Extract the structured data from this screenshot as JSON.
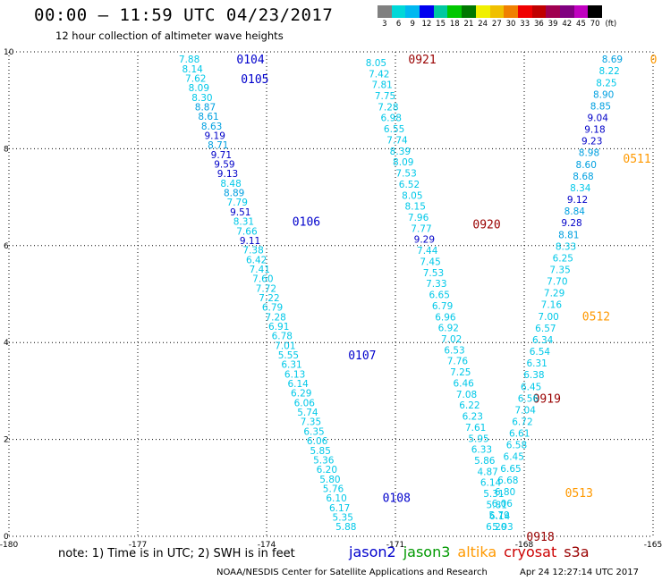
{
  "header": {
    "title": "00:00 – 11:59 UTC 04/23/2017",
    "subtitle": "12 hour collection of altimeter wave heights"
  },
  "color_scale": {
    "labels": [
      "3",
      "6",
      "9",
      "12",
      "15",
      "18",
      "21",
      "24",
      "27",
      "30",
      "33",
      "36",
      "39",
      "42",
      "45",
      "70"
    ],
    "unit": "(ft)",
    "colors": [
      "#808080",
      "#00d8d8",
      "#00b8f0",
      "#0000f0",
      "#00c8a0",
      "#00c800",
      "#007800",
      "#f0f000",
      "#f0c000",
      "#f08000",
      "#f00000",
      "#c00000",
      "#a00050",
      "#800080",
      "#c000c0",
      "#000000"
    ]
  },
  "note": "note: 1) Time is in UTC; 2) SWH is in feet",
  "legend": [
    {
      "name": "jason2",
      "color": "#0000cc"
    },
    {
      "name": "jason3",
      "color": "#009900"
    },
    {
      "name": "altika",
      "color": "#ff9900"
    },
    {
      "name": "cryosat",
      "color": "#cc0000"
    },
    {
      "name": "s3a",
      "color": "#990000"
    }
  ],
  "footer": {
    "center": "NOAA/NESDIS Center for Satellite Applications and Research",
    "right": "Apr 24 12:27:14 UTC 2017"
  },
  "chart_data": {
    "type": "scatter",
    "xlim": [
      -180,
      -165
    ],
    "ylim": [
      0,
      10
    ],
    "xticks": [
      "-180",
      "-177",
      "-174",
      "-171",
      "-168",
      "-165"
    ],
    "yticks": [
      "0",
      "2",
      "4",
      "6",
      "8",
      "10"
    ],
    "grid": true,
    "colors": {
      "light": "#00c8e8",
      "mid": "#00a0e0",
      "dark": "#0000c8",
      "time_jason2": "#0000cc",
      "time_altika": "#ff9900",
      "time_s3a": "#990000"
    },
    "tracks": [
      {
        "lon_start": -175.8,
        "lat_start": 9.85,
        "lon_end": -172.15,
        "lat_end": 0.2,
        "values": [
          "7.88",
          "8.14",
          "7.62",
          "8.09",
          "8.30",
          "8.87",
          "8.61",
          "8.63",
          "9.19",
          "8.71",
          "9.71",
          "9.59",
          "9.13",
          "8.48",
          "8.89",
          "7.79",
          "9.51",
          "8.31",
          "7.66",
          "9.11",
          "7.38",
          "6.42",
          "7.41",
          "7.60",
          "7.72",
          "7.22",
          "6.79",
          "7.28",
          "6.91",
          "6.78",
          "7.01",
          "5.55",
          "6.31",
          "6.13",
          "6.14",
          "6.29",
          "6.06",
          "5.74",
          "7.35",
          "6.35",
          "6.06",
          "5.85",
          "5.36",
          "6.20",
          "5.80",
          "5.76",
          "6.10",
          "6.17",
          "5.35",
          "5.88"
        ],
        "times": [
          {
            "label": "0104",
            "lon": -174.7,
            "lat": 9.85,
            "sat": "jason2"
          },
          {
            "label": "0105",
            "lon": -174.6,
            "lat": 9.45,
            "sat": "jason2"
          },
          {
            "label": "0106",
            "lon": -173.4,
            "lat": 6.5,
            "sat": "jason2"
          },
          {
            "label": "0107",
            "lon": -172.1,
            "lat": 3.75,
            "sat": "jason2"
          },
          {
            "label": "0108",
            "lon": -171.3,
            "lat": 0.8,
            "sat": "jason2"
          }
        ]
      },
      {
        "lon_start": -171.45,
        "lat_start": 9.78,
        "lon_end": -168.5,
        "lat_end": 0.2,
        "values": [
          "8.05",
          "7.42",
          "7.81",
          "7.75",
          "7.28",
          "6.98",
          "6.55",
          "7.74",
          "8.39",
          "8.09",
          "7.53",
          "6.52",
          "8.05",
          "8.15",
          "7.96",
          "7.77",
          "9.29",
          "7.44",
          "7.45",
          "7.53",
          "7.33",
          "6.65",
          "6.79",
          "6.96",
          "6.92",
          "7.02",
          "6.53",
          "7.76",
          "7.25",
          "6.46",
          "7.08",
          "6.22",
          "6.23",
          "7.61",
          "5.95",
          "6.33",
          "5.86",
          "4.87",
          "6.14",
          "5.31",
          "5.81",
          "6.14",
          "5.93"
        ],
        "times": [
          {
            "label": "0921",
            "lon": -170.7,
            "lat": 9.85,
            "sat": "s3a"
          },
          {
            "label": "0920",
            "lon": -169.2,
            "lat": 6.45,
            "sat": "s3a"
          },
          {
            "label": "0919",
            "lon": -167.8,
            "lat": 2.85,
            "sat": "s3a"
          },
          {
            "label": "0918",
            "lon": -167.95,
            "lat": 0.0,
            "sat": "s3a"
          }
        ]
      },
      {
        "lon_start": -165.95,
        "lat_start": 9.85,
        "lon_end": -168.65,
        "lat_end": 0.2,
        "values": [
          "8.69",
          "8.22",
          "8.25",
          "8.90",
          "8.85",
          "9.04",
          "9.18",
          "9.23",
          "8.98",
          "8.60",
          "8.68",
          "8.34",
          "9.12",
          "8.84",
          "9.28",
          "8.81",
          "8.33",
          "6.25",
          "7.35",
          "7.70",
          "7.29",
          "7.16",
          "7.00",
          "6.57",
          "6.34",
          "6.54",
          "6.31",
          "6.38",
          "6.45",
          "6.56",
          "7.04",
          "6.72",
          "6.61",
          "6.58",
          "6.45",
          "6.65",
          "6.68",
          "6.80",
          "6.06",
          "5.79",
          "6.20"
        ],
        "times": [
          {
            "label": "0",
            "lon": -165.07,
            "lat": 9.85,
            "sat": "altika"
          },
          {
            "label": "0511",
            "lon": -165.7,
            "lat": 7.8,
            "sat": "altika"
          },
          {
            "label": "0512",
            "lon": -166.65,
            "lat": 4.55,
            "sat": "altika"
          },
          {
            "label": "0513",
            "lon": -167.05,
            "lat": 0.9,
            "sat": "altika"
          }
        ]
      }
    ]
  }
}
